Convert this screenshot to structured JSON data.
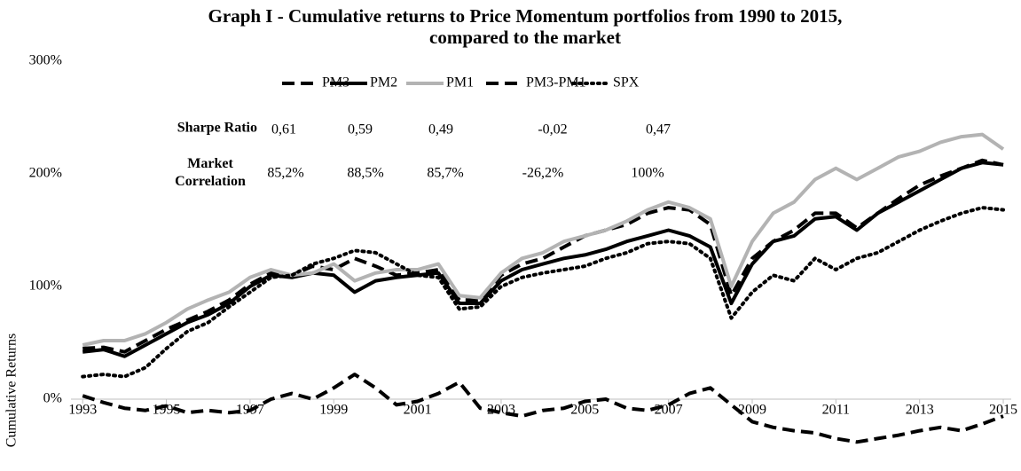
{
  "chart_data": {
    "type": "line",
    "title": "Graph I - Cumulative returns to Price Momentum portfolios from 1990 to 2015,",
    "subtitle": "compared to the market",
    "y_label": "Cumulative Returns",
    "x": [
      1993,
      1993.5,
      1994,
      1994.5,
      1995,
      1995.5,
      1996,
      1996.5,
      1997,
      1997.5,
      1998,
      1998.5,
      1999,
      1999.5,
      2000,
      2000.5,
      2001,
      2001.5,
      2002,
      2002.5,
      2003,
      2003.5,
      2004,
      2004.5,
      2005,
      2005.5,
      2006,
      2006.5,
      2007,
      2007.5,
      2008,
      2008.5,
      2009,
      2009.5,
      2010,
      2010.5,
      2011,
      2011.5,
      2012,
      2012.5,
      2013,
      2013.5,
      2014,
      2014.5,
      2015
    ],
    "series": [
      {
        "name": "PM3",
        "color": "#000000",
        "style": "dashed",
        "values": [
          45,
          46,
          42,
          52,
          62,
          70,
          78,
          88,
          102,
          112,
          110,
          118,
          115,
          125,
          118,
          110,
          112,
          115,
          88,
          88,
          110,
          120,
          125,
          135,
          145,
          150,
          155,
          165,
          170,
          168,
          155,
          92,
          125,
          140,
          150,
          165,
          165,
          152,
          165,
          178,
          190,
          198,
          205,
          212,
          208
        ]
      },
      {
        "name": "PM2",
        "color": "#000000",
        "style": "solid",
        "values": [
          42,
          44,
          38,
          48,
          58,
          68,
          75,
          85,
          100,
          110,
          108,
          112,
          110,
          95,
          105,
          108,
          110,
          112,
          85,
          85,
          105,
          115,
          120,
          125,
          128,
          133,
          140,
          145,
          150,
          145,
          135,
          85,
          120,
          140,
          145,
          160,
          162,
          150,
          165,
          175,
          185,
          195,
          205,
          210,
          208
        ]
      },
      {
        "name": "PM1",
        "color": "#b3b3b3",
        "style": "solid",
        "values": [
          48,
          52,
          52,
          58,
          68,
          80,
          88,
          95,
          108,
          115,
          110,
          112,
          120,
          105,
          112,
          115,
          115,
          120,
          92,
          90,
          112,
          125,
          130,
          140,
          145,
          150,
          158,
          168,
          175,
          170,
          160,
          100,
          140,
          165,
          175,
          195,
          205,
          195,
          205,
          215,
          220,
          228,
          233,
          235,
          222
        ]
      },
      {
        "name": "PM3-PM1",
        "color": "#000000",
        "style": "dashed",
        "values": [
          3,
          -3,
          -8,
          -10,
          -6,
          -12,
          -10,
          -12,
          -10,
          0,
          5,
          0,
          10,
          22,
          10,
          -5,
          -2,
          5,
          15,
          -8,
          -12,
          -15,
          -10,
          -8,
          -2,
          0,
          -8,
          -10,
          -5,
          5,
          10,
          -5,
          -20,
          -25,
          -28,
          -30,
          -35,
          -38,
          -35,
          -32,
          -28,
          -25,
          -28,
          -22,
          -15
        ]
      },
      {
        "name": "SPX",
        "color": "#000000",
        "style": "dotted",
        "values": [
          20,
          22,
          20,
          28,
          45,
          60,
          68,
          82,
          95,
          108,
          110,
          120,
          125,
          132,
          130,
          120,
          110,
          108,
          80,
          82,
          100,
          108,
          112,
          115,
          118,
          125,
          130,
          138,
          140,
          138,
          125,
          72,
          95,
          110,
          105,
          125,
          115,
          125,
          130,
          140,
          150,
          158,
          165,
          170,
          168
        ]
      }
    ],
    "xlim": [
      1992.72,
      2015.19
    ],
    "xticks": [
      1993,
      1995,
      1997,
      1999,
      2001,
      2003,
      2005,
      2007,
      2009,
      2011,
      2013,
      2015
    ],
    "ylim": [
      -50,
      300
    ],
    "yticks": [
      {
        "value": 0,
        "label": "0%"
      },
      {
        "value": 100,
        "label": "100%"
      },
      {
        "value": 200,
        "label": "200%"
      },
      {
        "value": 300,
        "label": "300%"
      }
    ],
    "legend": "top",
    "stats": [
      {
        "label": "Sharpe Ratio",
        "values": [
          "0,61",
          "0,59",
          "0,49",
          "-0,02",
          "0,47"
        ]
      },
      {
        "label": "Market Correlation",
        "values": [
          "85,2%",
          "88,5%",
          "85,7%",
          "-26,2%",
          "100%"
        ]
      }
    ]
  }
}
